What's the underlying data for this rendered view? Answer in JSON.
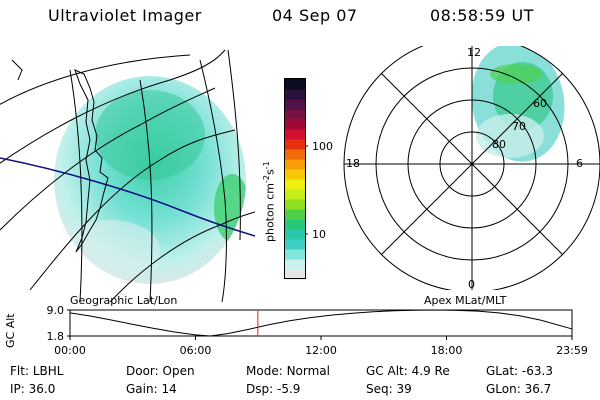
{
  "header": {
    "instrument": "Ultraviolet Imager",
    "date": "04 Sep 07",
    "time": "08:58:59 UT"
  },
  "maps": {
    "geo_label": "Geographic Lat/Lon",
    "apex_label": "Apex MLat/MLT",
    "polar_hours": {
      "top": "12",
      "left": "18",
      "right": "6",
      "bottom": "0"
    },
    "polar_lats": [
      "80",
      "70",
      "60"
    ]
  },
  "colorbar": {
    "label": "photon cm",
    "label_exp1": "-2",
    "label_mid": "s",
    "label_exp2": "-1",
    "ticks": [
      "100",
      "10"
    ],
    "colors": [
      "#e6e6e6",
      "#c9f2ee",
      "#7fe6dc",
      "#3ecfc4",
      "#28c8a8",
      "#28c878",
      "#50d048",
      "#8ce020",
      "#c8ec18",
      "#f0f010",
      "#f8c808",
      "#f89c08",
      "#f06c08",
      "#e83010",
      "#d01030",
      "#a00838",
      "#781040",
      "#501048",
      "#2a103c",
      "#0c0c20"
    ]
  },
  "chart_data": {
    "type": "line",
    "title": "GC Alt",
    "ylabel": "GC Alt",
    "yticks": [
      "9.0",
      "1.8"
    ],
    "ylim": [
      1.8,
      9.0
    ],
    "xlim": [
      0,
      24
    ],
    "xticks": [
      "00:00",
      "06:00",
      "12:00",
      "18:00",
      "23:59"
    ],
    "current_time_hours": 8.98,
    "series": [
      {
        "name": "GC Alt",
        "x": [
          0,
          1,
          2,
          3,
          4,
          5,
          6,
          6.7,
          7.5,
          8.5,
          9.5,
          10.5,
          11.5,
          12.5,
          13.5,
          14.5,
          15.5,
          16.5,
          17.5,
          18.5,
          19.5,
          20.5,
          21.5,
          22.5,
          23.98
        ],
        "values": [
          8.2,
          7.3,
          6.2,
          5.0,
          3.9,
          2.9,
          2.1,
          1.8,
          2.4,
          3.6,
          4.9,
          6.0,
          6.9,
          7.6,
          8.1,
          8.5,
          8.8,
          8.95,
          9.0,
          8.9,
          8.7,
          8.2,
          7.4,
          6.2,
          3.8
        ]
      }
    ]
  },
  "info": {
    "flt_label": "Flt:",
    "flt_value": "LBHL",
    "ip_label": "IP:",
    "ip_value": "36.0",
    "door_label": "Door:",
    "door_value": "Open",
    "gain_label": "Gain:",
    "gain_value": "14",
    "mode_label": "Mode:",
    "mode_value": "Normal",
    "dsp_label": "Dsp:",
    "dsp_value": "-5.9",
    "gcalt_label": "GC Alt:",
    "gcalt_value": "4.9 Re",
    "seq_label": "Seq:",
    "seq_value": "39",
    "glat_label": "GLat:",
    "glat_value": "-63.3",
    "glon_label": "GLon:",
    "glon_value": "36.7"
  }
}
